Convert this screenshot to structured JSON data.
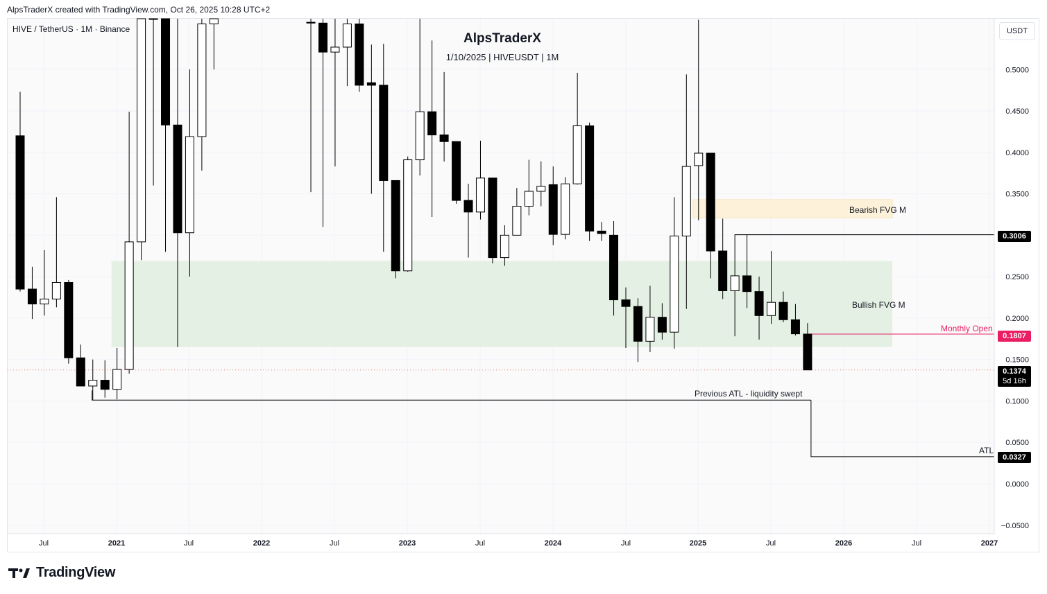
{
  "header": {
    "text": "AlpsTraderX created with TradingView.com, Oct 26, 2025 10:28 UTC+2"
  },
  "symbol_label": "HIVE / TetherUS · 1M · Binance",
  "currency": "USDT",
  "title": "AlpsTraderX",
  "subtitle": "1/10/2025 | HIVEUSDT | 1M",
  "footer_brand": "TradingView",
  "colors": {
    "candle_up_fill": "#ffffff",
    "candle_down_fill": "#000000",
    "bullish_zone": "#e5f0e4",
    "bearish_zone": "#fdf1d9",
    "monthly_open": "#e91e63",
    "price_dotted": "#e57373"
  },
  "annotations": {
    "bearish_fvg": "Bearish FVG M",
    "bullish_fvg": "Bullish FVG M",
    "monthly_open": "Monthly Open",
    "prev_atl": "Previous ATL - liquidity swept",
    "atl": "ATL"
  },
  "price_tags": {
    "level_1": "0.3006",
    "monthly_open": "0.1807",
    "last": "0.1374",
    "countdown": "5d 16h",
    "atl": "0.0327"
  },
  "chart_data": {
    "type": "candlestick",
    "title": "AlpsTraderX",
    "subtitle": "1/10/2025 | HIVEUSDT | 1M",
    "y_axis": {
      "ticks": [
        "0.5000",
        "0.4500",
        "0.4000",
        "0.3500",
        "0.3000",
        "0.2500",
        "0.2000",
        "0.1500",
        "0.1000",
        "0.0500",
        "0.0000",
        "−0.0500"
      ],
      "range": [
        -0.06,
        0.56
      ],
      "unit": "USDT"
    },
    "x_axis": {
      "ticks": [
        "Jul",
        "2021",
        "Jul",
        "2022",
        "Jul",
        "2023",
        "Jul",
        "2024",
        "Jul",
        "2025",
        "Jul",
        "2026",
        "Jul",
        "2027"
      ]
    },
    "grid": true,
    "candles": [
      {
        "date": "2020-05",
        "o": 0.42,
        "h": 0.473,
        "l": 0.232,
        "c": 0.235
      },
      {
        "date": "2020-06",
        "o": 0.235,
        "h": 0.262,
        "l": 0.199,
        "c": 0.217
      },
      {
        "date": "2020-07",
        "o": 0.217,
        "h": 0.282,
        "l": 0.203,
        "c": 0.223
      },
      {
        "date": "2020-08",
        "o": 0.223,
        "h": 0.346,
        "l": 0.213,
        "c": 0.243
      },
      {
        "date": "2020-09",
        "o": 0.243,
        "h": 0.246,
        "l": 0.145,
        "c": 0.152
      },
      {
        "date": "2020-10",
        "o": 0.152,
        "h": 0.168,
        "l": 0.118,
        "c": 0.118
      },
      {
        "date": "2020-11",
        "o": 0.118,
        "h": 0.15,
        "l": 0.101,
        "c": 0.125
      },
      {
        "date": "2020-12",
        "o": 0.125,
        "h": 0.149,
        "l": 0.104,
        "c": 0.114
      },
      {
        "date": "2021-01",
        "o": 0.114,
        "h": 0.164,
        "l": 0.102,
        "c": 0.138
      },
      {
        "date": "2021-02",
        "o": 0.138,
        "h": 0.449,
        "l": 0.133,
        "c": 0.292
      },
      {
        "date": "2021-03",
        "o": 0.292,
        "h": 0.6,
        "l": 0.27,
        "c": 0.6
      },
      {
        "date": "2021-04",
        "o": 0.6,
        "h": 0.66,
        "l": 0.36,
        "c": 0.6
      },
      {
        "date": "2021-05",
        "o": 0.6,
        "h": 0.72,
        "l": 0.28,
        "c": 0.433
      },
      {
        "date": "2021-06",
        "o": 0.433,
        "h": 0.6,
        "l": 0.165,
        "c": 0.303
      },
      {
        "date": "2021-07",
        "o": 0.303,
        "h": 0.5,
        "l": 0.25,
        "c": 0.419
      },
      {
        "date": "2021-08",
        "o": 0.419,
        "h": 0.6,
        "l": 0.378,
        "c": 0.555
      },
      {
        "date": "2021-09",
        "o": 0.555,
        "h": 0.64,
        "l": 0.5,
        "c": 0.575
      },
      {
        "date": "2022-05",
        "o": 0.557,
        "h": 0.63,
        "l": 0.352,
        "c": 0.556
      },
      {
        "date": "2022-06",
        "o": 0.556,
        "h": 0.64,
        "l": 0.31,
        "c": 0.521
      },
      {
        "date": "2022-07",
        "o": 0.521,
        "h": 0.64,
        "l": 0.383,
        "c": 0.527
      },
      {
        "date": "2022-08",
        "o": 0.527,
        "h": 0.64,
        "l": 0.48,
        "c": 0.555
      },
      {
        "date": "2022-09",
        "o": 0.555,
        "h": 0.64,
        "l": 0.473,
        "c": 0.481
      },
      {
        "date": "2022-10",
        "o": 0.484,
        "h": 0.53,
        "l": 0.35,
        "c": 0.481
      },
      {
        "date": "2022-11",
        "o": 0.481,
        "h": 0.531,
        "l": 0.28,
        "c": 0.366
      },
      {
        "date": "2022-12",
        "o": 0.366,
        "h": 0.366,
        "l": 0.248,
        "c": 0.257
      },
      {
        "date": "2023-01",
        "o": 0.257,
        "h": 0.395,
        "l": 0.256,
        "c": 0.391
      },
      {
        "date": "2023-02",
        "o": 0.391,
        "h": 0.64,
        "l": 0.372,
        "c": 0.449
      },
      {
        "date": "2023-03",
        "o": 0.449,
        "h": 0.535,
        "l": 0.322,
        "c": 0.421
      },
      {
        "date": "2023-04",
        "o": 0.421,
        "h": 0.497,
        "l": 0.389,
        "c": 0.413
      },
      {
        "date": "2023-05",
        "o": 0.413,
        "h": 0.413,
        "l": 0.338,
        "c": 0.342
      },
      {
        "date": "2023-06",
        "o": 0.342,
        "h": 0.362,
        "l": 0.273,
        "c": 0.328
      },
      {
        "date": "2023-07",
        "o": 0.328,
        "h": 0.414,
        "l": 0.319,
        "c": 0.369
      },
      {
        "date": "2023-08",
        "o": 0.369,
        "h": 0.369,
        "l": 0.266,
        "c": 0.273
      },
      {
        "date": "2023-09",
        "o": 0.273,
        "h": 0.312,
        "l": 0.263,
        "c": 0.3
      },
      {
        "date": "2023-10",
        "o": 0.3,
        "h": 0.357,
        "l": 0.3,
        "c": 0.335
      },
      {
        "date": "2023-11",
        "o": 0.335,
        "h": 0.391,
        "l": 0.324,
        "c": 0.353
      },
      {
        "date": "2023-12",
        "o": 0.353,
        "h": 0.389,
        "l": 0.335,
        "c": 0.359
      },
      {
        "date": "2024-01",
        "o": 0.361,
        "h": 0.383,
        "l": 0.288,
        "c": 0.301
      },
      {
        "date": "2024-02",
        "o": 0.301,
        "h": 0.37,
        "l": 0.295,
        "c": 0.362
      },
      {
        "date": "2024-03",
        "o": 0.362,
        "h": 0.496,
        "l": 0.361,
        "c": 0.432
      },
      {
        "date": "2024-04",
        "o": 0.432,
        "h": 0.436,
        "l": 0.293,
        "c": 0.305
      },
      {
        "date": "2024-05",
        "o": 0.305,
        "h": 0.316,
        "l": 0.293,
        "c": 0.302
      },
      {
        "date": "2024-06",
        "o": 0.3,
        "h": 0.317,
        "l": 0.203,
        "c": 0.222
      },
      {
        "date": "2024-07",
        "o": 0.222,
        "h": 0.237,
        "l": 0.164,
        "c": 0.214
      },
      {
        "date": "2024-08",
        "o": 0.214,
        "h": 0.224,
        "l": 0.147,
        "c": 0.172
      },
      {
        "date": "2024-09",
        "o": 0.172,
        "h": 0.239,
        "l": 0.159,
        "c": 0.201
      },
      {
        "date": "2024-10",
        "o": 0.201,
        "h": 0.218,
        "l": 0.174,
        "c": 0.183
      },
      {
        "date": "2024-11",
        "o": 0.183,
        "h": 0.346,
        "l": 0.163,
        "c": 0.299
      },
      {
        "date": "2024-12",
        "o": 0.299,
        "h": 0.494,
        "l": 0.211,
        "c": 0.383
      },
      {
        "date": "2025-01",
        "o": 0.384,
        "h": 0.56,
        "l": 0.318,
        "c": 0.399
      },
      {
        "date": "2025-02",
        "o": 0.399,
        "h": 0.399,
        "l": 0.248,
        "c": 0.281
      },
      {
        "date": "2025-03",
        "o": 0.281,
        "h": 0.32,
        "l": 0.223,
        "c": 0.233
      },
      {
        "date": "2025-04",
        "o": 0.233,
        "h": 0.25,
        "l": 0.178,
        "c": 0.251
      },
      {
        "date": "2025-05",
        "o": 0.251,
        "h": 0.301,
        "l": 0.212,
        "c": 0.232
      },
      {
        "date": "2025-06",
        "o": 0.232,
        "h": 0.25,
        "l": 0.174,
        "c": 0.203
      },
      {
        "date": "2025-07",
        "o": 0.203,
        "h": 0.281,
        "l": 0.193,
        "c": 0.219
      },
      {
        "date": "2025-08",
        "o": 0.219,
        "h": 0.232,
        "l": 0.195,
        "c": 0.198
      },
      {
        "date": "2025-09",
        "o": 0.198,
        "h": 0.217,
        "l": 0.179,
        "c": 0.181
      },
      {
        "date": "2025-10",
        "o": 0.1807,
        "h": 0.194,
        "l": 0.1374,
        "c": 0.1374
      }
    ],
    "zones": [
      {
        "name": "Bearish FVG M",
        "from": "2025-01",
        "to": "2026-05",
        "low": 0.321,
        "high": 0.343
      },
      {
        "name": "Bullish FVG M",
        "from": "2021-01",
        "to": "2026-05",
        "low": 0.165,
        "high": 0.269
      }
    ],
    "levels": [
      {
        "name": "0.3006",
        "from": "2025-04",
        "value": 0.3006
      },
      {
        "name": "Monthly Open",
        "from": "2025-10",
        "value": 0.1807
      },
      {
        "name": "Previous ATL - liquidity swept",
        "from": "2020-11",
        "to": "2025-10",
        "value": 0.101
      },
      {
        "name": "ATL",
        "from": "2025-10",
        "value": 0.0327
      },
      {
        "name": "Last price",
        "value": 0.1374
      }
    ]
  }
}
